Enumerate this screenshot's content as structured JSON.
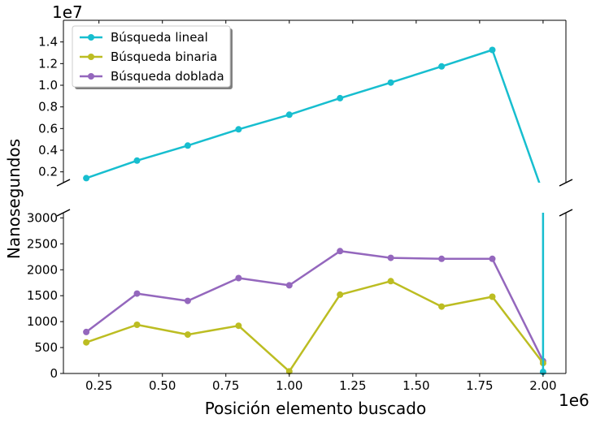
{
  "chart_data": {
    "type": "line",
    "broken_y_axis": true,
    "xlabel": "Posición elemento buscado",
    "ylabel": "Nanosegundos",
    "x_offset_label": "1e6",
    "top_offset_label": "1e7",
    "x": [
      0.2,
      0.4,
      0.6,
      0.8,
      1.0,
      1.2,
      1.4,
      1.6,
      1.8,
      2.0
    ],
    "x_ticks": [
      "0.25",
      "0.50",
      "0.75",
      "1.00",
      "1.25",
      "1.50",
      "1.75",
      "2.00"
    ],
    "xlim": [
      0.11,
      2.09
    ],
    "top_ylim": [
      0.1,
      1.6
    ],
    "top_y_ticks": [
      "0.2",
      "0.4",
      "0.6",
      "0.8",
      "1.0",
      "1.2",
      "1.4"
    ],
    "bottom_ylim": [
      0,
      3100
    ],
    "bottom_y_ticks": [
      "0",
      "500",
      "1000",
      "1500",
      "2000",
      "2500",
      "3000"
    ],
    "legend_position": "top-left",
    "series": [
      {
        "name": "Búsqueda lineal",
        "color": "#17becf",
        "values": [
          1420000,
          3040000,
          4430000,
          5930000,
          7280000,
          8810000,
          10250000,
          11740000,
          13260000,
          30
        ]
      },
      {
        "name": "Búsqueda binaria",
        "color": "#bcbd22",
        "values": [
          600,
          940,
          750,
          920,
          40,
          1520,
          1780,
          1290,
          1480,
          200
        ]
      },
      {
        "name": "Búsqueda doblada",
        "color": "#9467bd",
        "values": [
          800,
          1540,
          1400,
          1840,
          1700,
          2360,
          2230,
          2210,
          2210,
          240
        ]
      }
    ]
  }
}
